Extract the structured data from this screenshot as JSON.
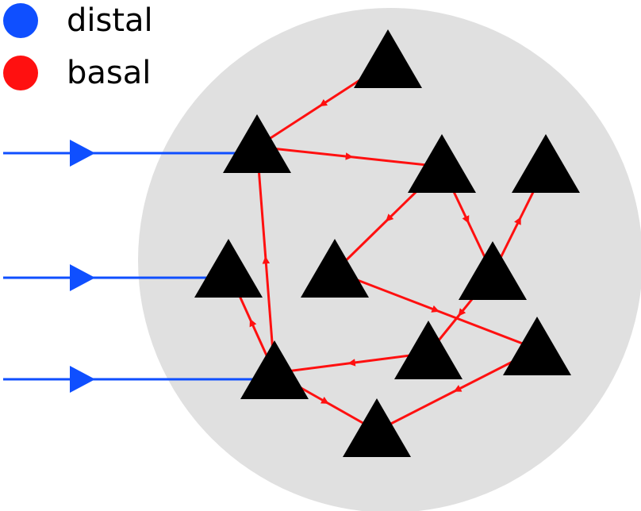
{
  "legend": {
    "distal": {
      "label": "distal",
      "color": "#0f4fff"
    },
    "basal": {
      "label": "basal",
      "color": "#ff1010"
    }
  },
  "colors": {
    "circle": "#e0e0e0",
    "neuron": "#000000"
  },
  "neurons": [
    "n-top",
    "n-upper-left",
    "n-upper-mid",
    "n-upper-right",
    "n-mid-left",
    "n-center",
    "n-mid-right",
    "n-lower-mid",
    "n-right",
    "n-lower-left",
    "n-bottom"
  ],
  "connections": {
    "basal": [
      [
        "n-top",
        "n-upper-left"
      ],
      [
        "n-upper-left",
        "n-upper-mid"
      ],
      [
        "n-upper-mid",
        "n-center"
      ],
      [
        "n-upper-mid",
        "n-mid-right"
      ],
      [
        "n-mid-right",
        "n-upper-right"
      ],
      [
        "n-mid-right",
        "n-lower-mid"
      ],
      [
        "n-center",
        "n-right"
      ],
      [
        "n-lower-mid",
        "n-lower-left"
      ],
      [
        "n-lower-left",
        "n-upper-left"
      ],
      [
        "n-lower-left",
        "n-mid-left"
      ],
      [
        "n-lower-left",
        "n-bottom"
      ],
      [
        "n-right",
        "n-bottom"
      ]
    ],
    "distal": [
      "n-upper-left",
      "n-mid-left",
      "n-lower-left"
    ]
  }
}
